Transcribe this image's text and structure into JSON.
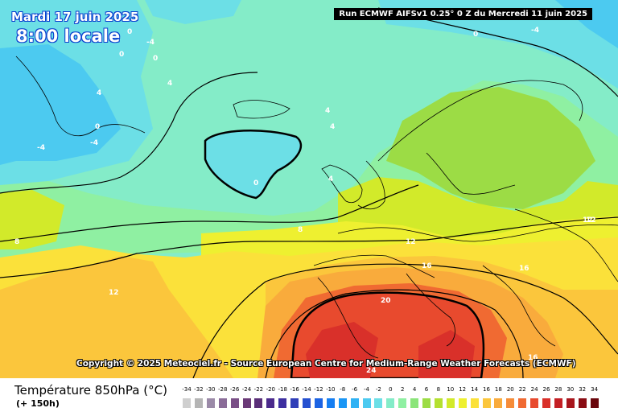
{
  "header": {
    "date": "Mardi 17 juin 2025",
    "local_time": "8:00 locale",
    "run_info": "Run ECMWF AIFSv1 0.25° 0 Z du Mercredi 11 juin 2025"
  },
  "copyright": "Copyright © 2025 Meteociel.fr - Source European Centre for Medium-Range Weather Forecasts (ECMWF)",
  "footer": {
    "variable": "Température 850hPa (°C)",
    "lead_time": "(+ 150h)"
  },
  "legend": {
    "ticks": [
      "-34",
      "-32",
      "-30",
      "-28",
      "-26",
      "-24",
      "-22",
      "-20",
      "-18",
      "-16",
      "-14",
      "-12",
      "-10",
      "-8",
      "-6",
      "-4",
      "-2",
      "0",
      "2",
      "4",
      "6",
      "8",
      "10",
      "12",
      "14",
      "16",
      "18",
      "20",
      "22",
      "24",
      "26",
      "28",
      "30",
      "32",
      "34"
    ],
    "colors": [
      "#cfcfcf",
      "#b5b5b5",
      "#9b8aa8",
      "#8a6c98",
      "#7a4f87",
      "#6b3a78",
      "#5a2e78",
      "#4b2a8c",
      "#3d2fa0",
      "#2f3eb8",
      "#2550d0",
      "#1c63e3",
      "#157ef2",
      "#1a96f5",
      "#2fb2f4",
      "#4ccaf0",
      "#6cdfe6",
      "#84ecc8",
      "#8ff0a2",
      "#8be57a",
      "#9cdc45",
      "#b4e030",
      "#d2ea2a",
      "#eef030",
      "#fbe13a",
      "#fbc63c",
      "#f9ab3c",
      "#f68c38",
      "#f06a32",
      "#e84a2e",
      "#d9302a",
      "#c41f24",
      "#a8151c",
      "#8a0d14",
      "#6a060c"
    ]
  },
  "contour_labels": [
    "0",
    "-4",
    "0",
    "0",
    "4",
    "4",
    "0",
    "-4",
    "0",
    "4",
    "4",
    "0",
    "-4",
    "8",
    "8",
    "12",
    "12",
    "16",
    "16",
    "12",
    "20",
    "12",
    "16",
    "24"
  ],
  "map": {
    "palette": {
      "cold_ocean": "#84ecc8",
      "colder": "#6cdfe6",
      "coldest": "#4ccaf0",
      "cool": "#8ff0a2",
      "green": "#9cdc45",
      "yellowgreen": "#d2ea2a",
      "yellow": "#eef030",
      "pale_orange": "#fbe13a",
      "orange": "#fbc63c",
      "dark_orange": "#f9ab3c",
      "red_orange": "#f06a32",
      "red": "#e84a2e",
      "deep_red": "#d9302a"
    }
  }
}
